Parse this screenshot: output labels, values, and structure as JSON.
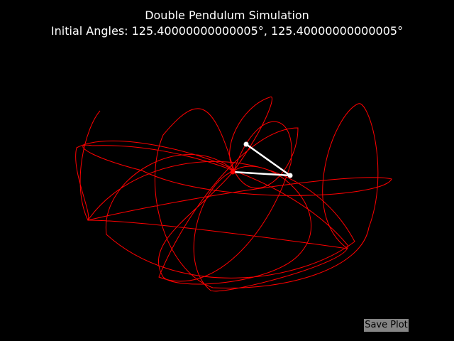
{
  "window": {
    "title_line1": "Double Pendulum Simulation",
    "title_line2": "Initial Angles: 125.40000000000005°, 125.40000000000005°"
  },
  "colors": {
    "background": "#000000",
    "trace": "#ff0000",
    "rod": "#ffffff",
    "button_bg": "#858585"
  },
  "controls": {
    "save_label": "Save Plot"
  },
  "chart_data": {
    "type": "line",
    "title": "Double Pendulum Simulation",
    "subtitle": "Initial Angles: 125.40000000000005°, 125.40000000000005°",
    "initial_angles_deg": [
      125.40000000000005,
      125.40000000000005
    ],
    "xlim": [
      -2.1,
      2.1
    ],
    "ylim": [
      -2.1,
      2.1
    ],
    "grid": false,
    "pivot": [
      0,
      0
    ],
    "bob1": [
      0.81,
      -0.05
    ],
    "bob2": [
      0.19,
      0.39
    ]
  }
}
